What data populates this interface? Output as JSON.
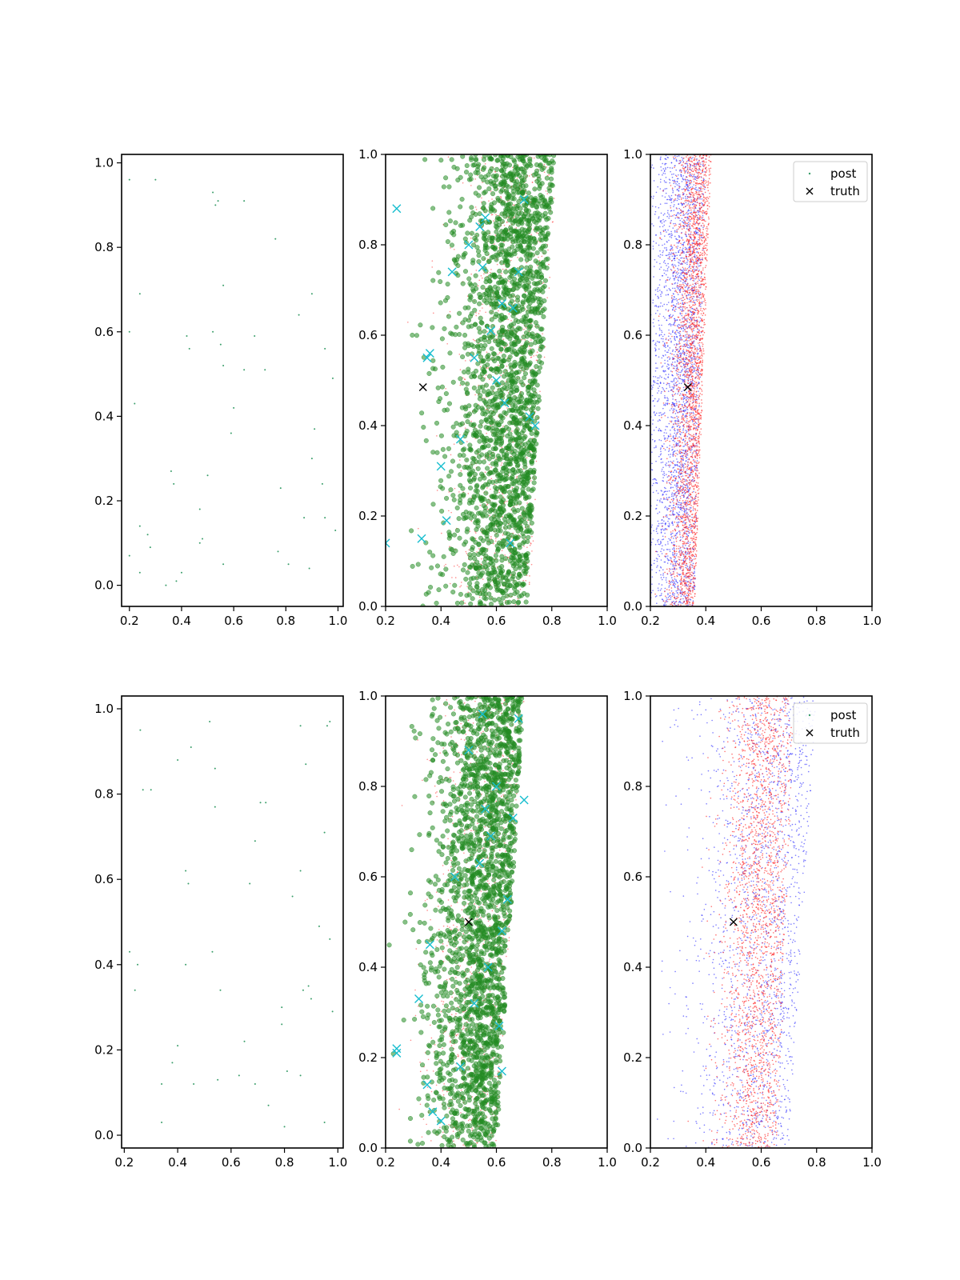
{
  "chart_data": [
    {
      "panel": "row1-col1",
      "type": "scatter",
      "xlim": [
        0.17,
        1.02
      ],
      "ylim": [
        -0.05,
        1.02
      ],
      "xticks": [
        "0.2",
        "0.4",
        "0.6",
        "0.8",
        "1.0"
      ],
      "yticks": [
        "0.0",
        "0.2",
        "0.4",
        "0.6",
        "0.8",
        "1.0"
      ],
      "xtick_values": [
        0.2,
        0.4,
        0.6,
        0.8,
        1.0
      ],
      "ytick_values": [
        0.0,
        0.2,
        0.4,
        0.6,
        0.8,
        1.0
      ],
      "series": [
        {
          "marker": "point",
          "color": "#3a9e6a",
          "x": [
            0.2,
            0.3,
            0.52,
            0.54,
            0.53,
            0.64,
            0.76,
            0.24,
            0.56,
            0.9,
            0.85,
            0.2,
            0.42,
            0.52,
            0.68,
            0.55,
            0.95,
            0.43,
            0.56,
            0.64,
            0.72,
            0.98,
            0.22,
            0.6,
            0.59,
            0.91,
            0.36,
            0.37,
            0.5,
            0.9,
            0.94,
            0.78,
            0.47,
            0.87,
            0.95,
            0.99,
            0.24,
            0.27,
            0.28,
            0.2,
            0.48,
            0.47,
            0.56,
            0.81,
            0.89,
            0.24,
            0.4,
            0.38,
            0.34,
            0.77
          ],
          "y": [
            0.96,
            0.96,
            0.93,
            0.91,
            0.9,
            0.91,
            0.82,
            0.69,
            0.71,
            0.69,
            0.64,
            0.6,
            0.59,
            0.6,
            0.59,
            0.57,
            0.56,
            0.56,
            0.52,
            0.51,
            0.51,
            0.49,
            0.43,
            0.42,
            0.36,
            0.37,
            0.27,
            0.24,
            0.26,
            0.3,
            0.24,
            0.23,
            0.18,
            0.16,
            0.16,
            0.13,
            0.14,
            0.12,
            0.09,
            0.07,
            0.11,
            0.1,
            0.05,
            0.05,
            0.04,
            0.03,
            0.03,
            0.01,
            0.0,
            0.08
          ]
        }
      ]
    },
    {
      "panel": "row1-col2",
      "type": "scatter",
      "xlim": [
        0.2,
        1.0
      ],
      "ylim": [
        0.0,
        1.0
      ],
      "xticks": [
        "0.2",
        "0.4",
        "0.6",
        "0.8",
        "1.0"
      ],
      "yticks": [
        "0.0",
        "0.2",
        "0.4",
        "0.6",
        "0.8",
        "1.0"
      ],
      "xtick_values": [
        0.2,
        0.4,
        0.6,
        0.8,
        1.0
      ],
      "ytick_values": [
        0.0,
        0.2,
        0.4,
        0.6,
        0.8,
        1.0
      ],
      "generated_clouds": [
        {
          "marker": "small-point",
          "color": "#ff4d4d",
          "count": 900,
          "seed": 11,
          "x_center": 0.62,
          "x_spread": 0.1,
          "x_right_bottom": 0.72,
          "x_right_top": 0.82,
          "x_left": 0.2
        },
        {
          "marker": "circle",
          "color": "#228b22",
          "count": 2200,
          "seed": 12,
          "x_center": 0.65,
          "x_spread": 0.12,
          "x_right_bottom": 0.71,
          "x_right_top": 0.81,
          "x_left": 0.2
        }
      ],
      "series": [
        {
          "marker": "x",
          "color": "#17becf",
          "x": [
            0.24,
            0.35,
            0.44,
            0.5,
            0.54,
            0.55,
            0.58,
            0.62,
            0.66,
            0.7,
            0.72,
            0.74,
            0.4,
            0.42,
            0.36,
            0.6,
            0.63,
            0.68,
            0.2,
            0.47,
            0.52,
            0.65,
            0.33,
            0.56
          ],
          "y": [
            0.88,
            0.55,
            0.74,
            0.8,
            0.84,
            0.75,
            0.61,
            0.67,
            0.66,
            0.9,
            0.42,
            0.4,
            0.31,
            0.19,
            0.56,
            0.5,
            0.45,
            0.74,
            0.14,
            0.37,
            0.55,
            0.14,
            0.15,
            0.86
          ]
        },
        {
          "marker": "x",
          "color": "#000000",
          "x": [
            0.335
          ],
          "y": [
            0.485
          ]
        }
      ]
    },
    {
      "panel": "row1-col3",
      "type": "scatter",
      "xlim": [
        0.2,
        1.0
      ],
      "ylim": [
        0.0,
        1.0
      ],
      "xticks": [
        "0.2",
        "0.4",
        "0.6",
        "0.8",
        "1.0"
      ],
      "yticks": [
        "0.0",
        "0.2",
        "0.4",
        "0.6",
        "0.8",
        "1.0"
      ],
      "xtick_values": [
        0.2,
        0.4,
        0.6,
        0.8,
        1.0
      ],
      "ytick_values": [
        0.0,
        0.2,
        0.4,
        0.6,
        0.8,
        1.0
      ],
      "generated_clouds": [
        {
          "marker": "small-point",
          "color": "#3333ff",
          "count": 2600,
          "seed": 21,
          "x_center": 0.3,
          "x_spread": 0.06,
          "x_right_bottom": 0.36,
          "x_right_top": 0.4,
          "x_left": 0.2
        },
        {
          "marker": "small-point",
          "color": "#ff2222",
          "count": 2600,
          "seed": 22,
          "x_center": 0.34,
          "x_spread": 0.04,
          "x_right_bottom": 0.36,
          "x_right_top": 0.42,
          "x_left": 0.2
        }
      ],
      "series": [
        {
          "marker": "x",
          "color": "#000000",
          "x": [
            0.335
          ],
          "y": [
            0.485
          ]
        }
      ],
      "legend": {
        "placement": "top-right",
        "entries": [
          {
            "label": "post",
            "marker": "point",
            "color": "#3a9e6a"
          },
          {
            "label": "truth",
            "marker": "x",
            "color": "#000000"
          }
        ]
      }
    },
    {
      "panel": "row2-col1",
      "type": "scatter",
      "xlim": [
        0.19,
        1.02
      ],
      "ylim": [
        -0.03,
        1.03
      ],
      "xticks": [
        "0.2",
        "0.4",
        "0.6",
        "0.8",
        "1.0"
      ],
      "yticks": [
        "0.0",
        "0.2",
        "0.4",
        "0.6",
        "0.8",
        "1.0"
      ],
      "xtick_values": [
        0.2,
        0.4,
        0.6,
        0.8,
        1.0
      ],
      "ytick_values": [
        0.0,
        0.2,
        0.4,
        0.6,
        0.8,
        1.0
      ],
      "series": [
        {
          "marker": "point",
          "color": "#3a9e6a",
          "x": [
            0.26,
            0.52,
            0.86,
            0.97,
            0.96,
            0.4,
            0.45,
            0.54,
            0.88,
            0.27,
            0.3,
            0.54,
            0.71,
            0.73,
            0.69,
            0.95,
            0.43,
            0.86,
            0.44,
            0.67,
            0.83,
            0.22,
            0.25,
            0.43,
            0.53,
            0.93,
            0.97,
            0.24,
            0.56,
            0.87,
            0.89,
            0.9,
            0.79,
            0.79,
            0.4,
            0.38,
            0.65,
            0.34,
            0.46,
            0.55,
            0.63,
            0.69,
            0.81,
            0.86,
            0.74,
            0.98,
            0.34,
            0.8,
            0.95
          ],
          "y": [
            0.95,
            0.97,
            0.96,
            0.97,
            0.96,
            0.88,
            0.91,
            0.86,
            0.87,
            0.81,
            0.81,
            0.77,
            0.78,
            0.78,
            0.69,
            0.71,
            0.62,
            0.62,
            0.59,
            0.59,
            0.56,
            0.43,
            0.4,
            0.4,
            0.43,
            0.49,
            0.46,
            0.34,
            0.34,
            0.34,
            0.35,
            0.32,
            0.3,
            0.26,
            0.21,
            0.17,
            0.22,
            0.12,
            0.12,
            0.13,
            0.14,
            0.12,
            0.15,
            0.14,
            0.07,
            0.29,
            0.03,
            0.02,
            0.03
          ]
        }
      ]
    },
    {
      "panel": "row2-col2",
      "type": "scatter",
      "xlim": [
        0.2,
        1.0
      ],
      "ylim": [
        0.0,
        1.0
      ],
      "xticks": [
        "0.2",
        "0.4",
        "0.6",
        "0.8",
        "1.0"
      ],
      "yticks": [
        "0.0",
        "0.2",
        "0.4",
        "0.6",
        "0.8",
        "1.0"
      ],
      "xtick_values": [
        0.2,
        0.4,
        0.6,
        0.8,
        1.0
      ],
      "ytick_values": [
        0.0,
        0.2,
        0.4,
        0.6,
        0.8,
        1.0
      ],
      "generated_clouds": [
        {
          "marker": "small-point",
          "color": "#ff4d4d",
          "count": 900,
          "seed": 31,
          "x_center": 0.53,
          "x_spread": 0.1,
          "x_right_bottom": 0.6,
          "x_right_top": 0.7,
          "x_left": 0.2
        },
        {
          "marker": "circle",
          "color": "#228b22",
          "count": 2200,
          "seed": 32,
          "x_center": 0.56,
          "x_spread": 0.11,
          "x_right_bottom": 0.6,
          "x_right_top": 0.7,
          "x_left": 0.2
        }
      ],
      "series": [
        {
          "marker": "x",
          "color": "#17becf",
          "x": [
            0.24,
            0.24,
            0.32,
            0.37,
            0.36,
            0.4,
            0.47,
            0.52,
            0.54,
            0.56,
            0.6,
            0.62,
            0.64,
            0.66,
            0.7,
            0.5,
            0.55,
            0.58,
            0.61,
            0.45,
            0.35,
            0.62,
            0.57,
            0.68
          ],
          "y": [
            0.22,
            0.21,
            0.33,
            0.08,
            0.45,
            0.06,
            0.18,
            0.32,
            0.63,
            0.75,
            0.8,
            0.48,
            0.55,
            0.73,
            0.77,
            0.88,
            0.96,
            0.69,
            0.27,
            0.6,
            0.14,
            0.17,
            0.4,
            0.95
          ]
        },
        {
          "marker": "x",
          "color": "#000000",
          "x": [
            0.5
          ],
          "y": [
            0.5
          ]
        }
      ]
    },
    {
      "panel": "row2-col3",
      "type": "scatter",
      "xlim": [
        0.2,
        1.0
      ],
      "ylim": [
        0.0,
        1.0
      ],
      "xticks": [
        "0.2",
        "0.4",
        "0.6",
        "0.8",
        "1.0"
      ],
      "yticks": [
        "0.0",
        "0.2",
        "0.4",
        "0.6",
        "0.8",
        "1.0"
      ],
      "xtick_values": [
        0.2,
        0.4,
        0.6,
        0.8,
        1.0
      ],
      "ytick_values": [
        0.0,
        0.2,
        0.4,
        0.6,
        0.8,
        1.0
      ],
      "generated_clouds": [
        {
          "marker": "small-point",
          "color": "#3333ff",
          "count": 1800,
          "seed": 41,
          "x_center": 0.62,
          "x_spread": 0.15,
          "x_right_bottom": 0.7,
          "x_right_top": 0.8,
          "x_left": 0.2
        },
        {
          "marker": "small-point",
          "color": "#ff2222",
          "count": 2200,
          "seed": 42,
          "x_center": 0.58,
          "x_spread": 0.07,
          "x_right_bottom": 0.66,
          "x_right_top": 0.72,
          "x_left": 0.2
        }
      ],
      "series": [
        {
          "marker": "x",
          "color": "#000000",
          "x": [
            0.5
          ],
          "y": [
            0.5
          ]
        }
      ],
      "legend": {
        "placement": "top-right",
        "entries": [
          {
            "label": "post",
            "marker": "point",
            "color": "#3a9e6a"
          },
          {
            "label": "truth",
            "marker": "x",
            "color": "#000000"
          }
        ]
      }
    }
  ]
}
